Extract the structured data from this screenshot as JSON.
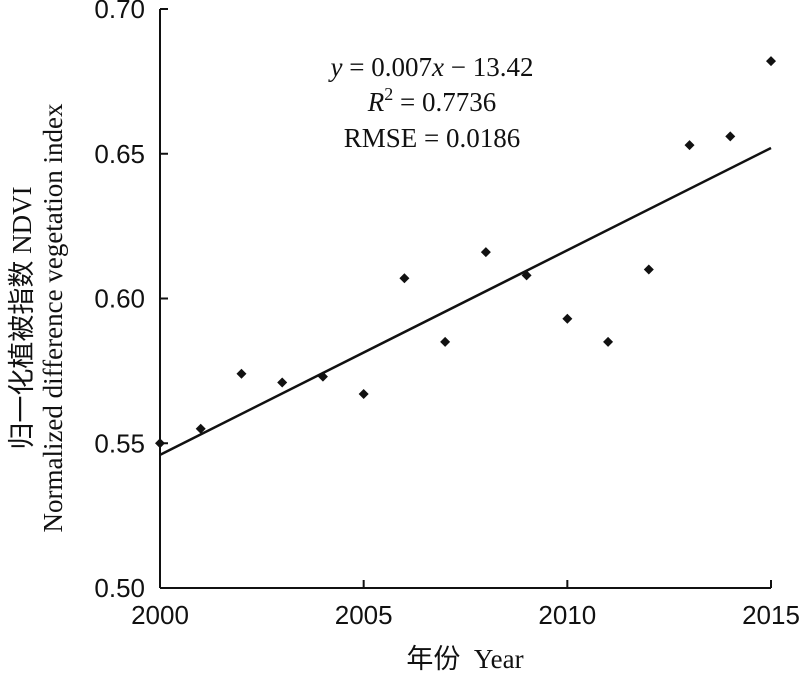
{
  "chart_data": {
    "type": "scatter",
    "title": "",
    "xlabel": "年份  Year",
    "ylabel_line1": "归一化植被指数  NDVI",
    "ylabel_line2": "Normalized difference vegetation index",
    "xlim": [
      2000,
      2015
    ],
    "ylim": [
      0.5,
      0.7
    ],
    "xticks": [
      2000,
      2005,
      2010,
      2015
    ],
    "yticks": [
      0.5,
      0.55,
      0.6,
      0.65,
      0.7
    ],
    "ytick_labels": [
      "0.50",
      "0.55",
      "0.60",
      "0.65",
      "0.70"
    ],
    "grid": false,
    "legend": "none",
    "series": [
      {
        "x": [
          2000,
          2001,
          2002,
          2003,
          2004,
          2005,
          2006,
          2007,
          2008,
          2009,
          2010,
          2011,
          2012,
          2013,
          2014,
          2015
        ],
        "y": [
          0.55,
          0.555,
          0.574,
          0.571,
          0.573,
          0.567,
          0.607,
          0.585,
          0.616,
          0.608,
          0.593,
          0.585,
          0.61,
          0.653,
          0.656,
          0.682
        ]
      }
    ],
    "trendline": {
      "x": [
        2000,
        2015
      ],
      "y": [
        0.546,
        0.652
      ]
    },
    "annotations": {
      "equation": {
        "y_var": "y",
        "eq": " = 0.007",
        "x_var": "x",
        "rest": " − 13.42"
      },
      "r2": {
        "var": "R",
        "sup": "2",
        "rest": " = 0.7736"
      },
      "rmse": "RMSE = 0.0186"
    },
    "colors": {
      "marker": "#111111",
      "line": "#111111",
      "axis": "#111111"
    }
  }
}
